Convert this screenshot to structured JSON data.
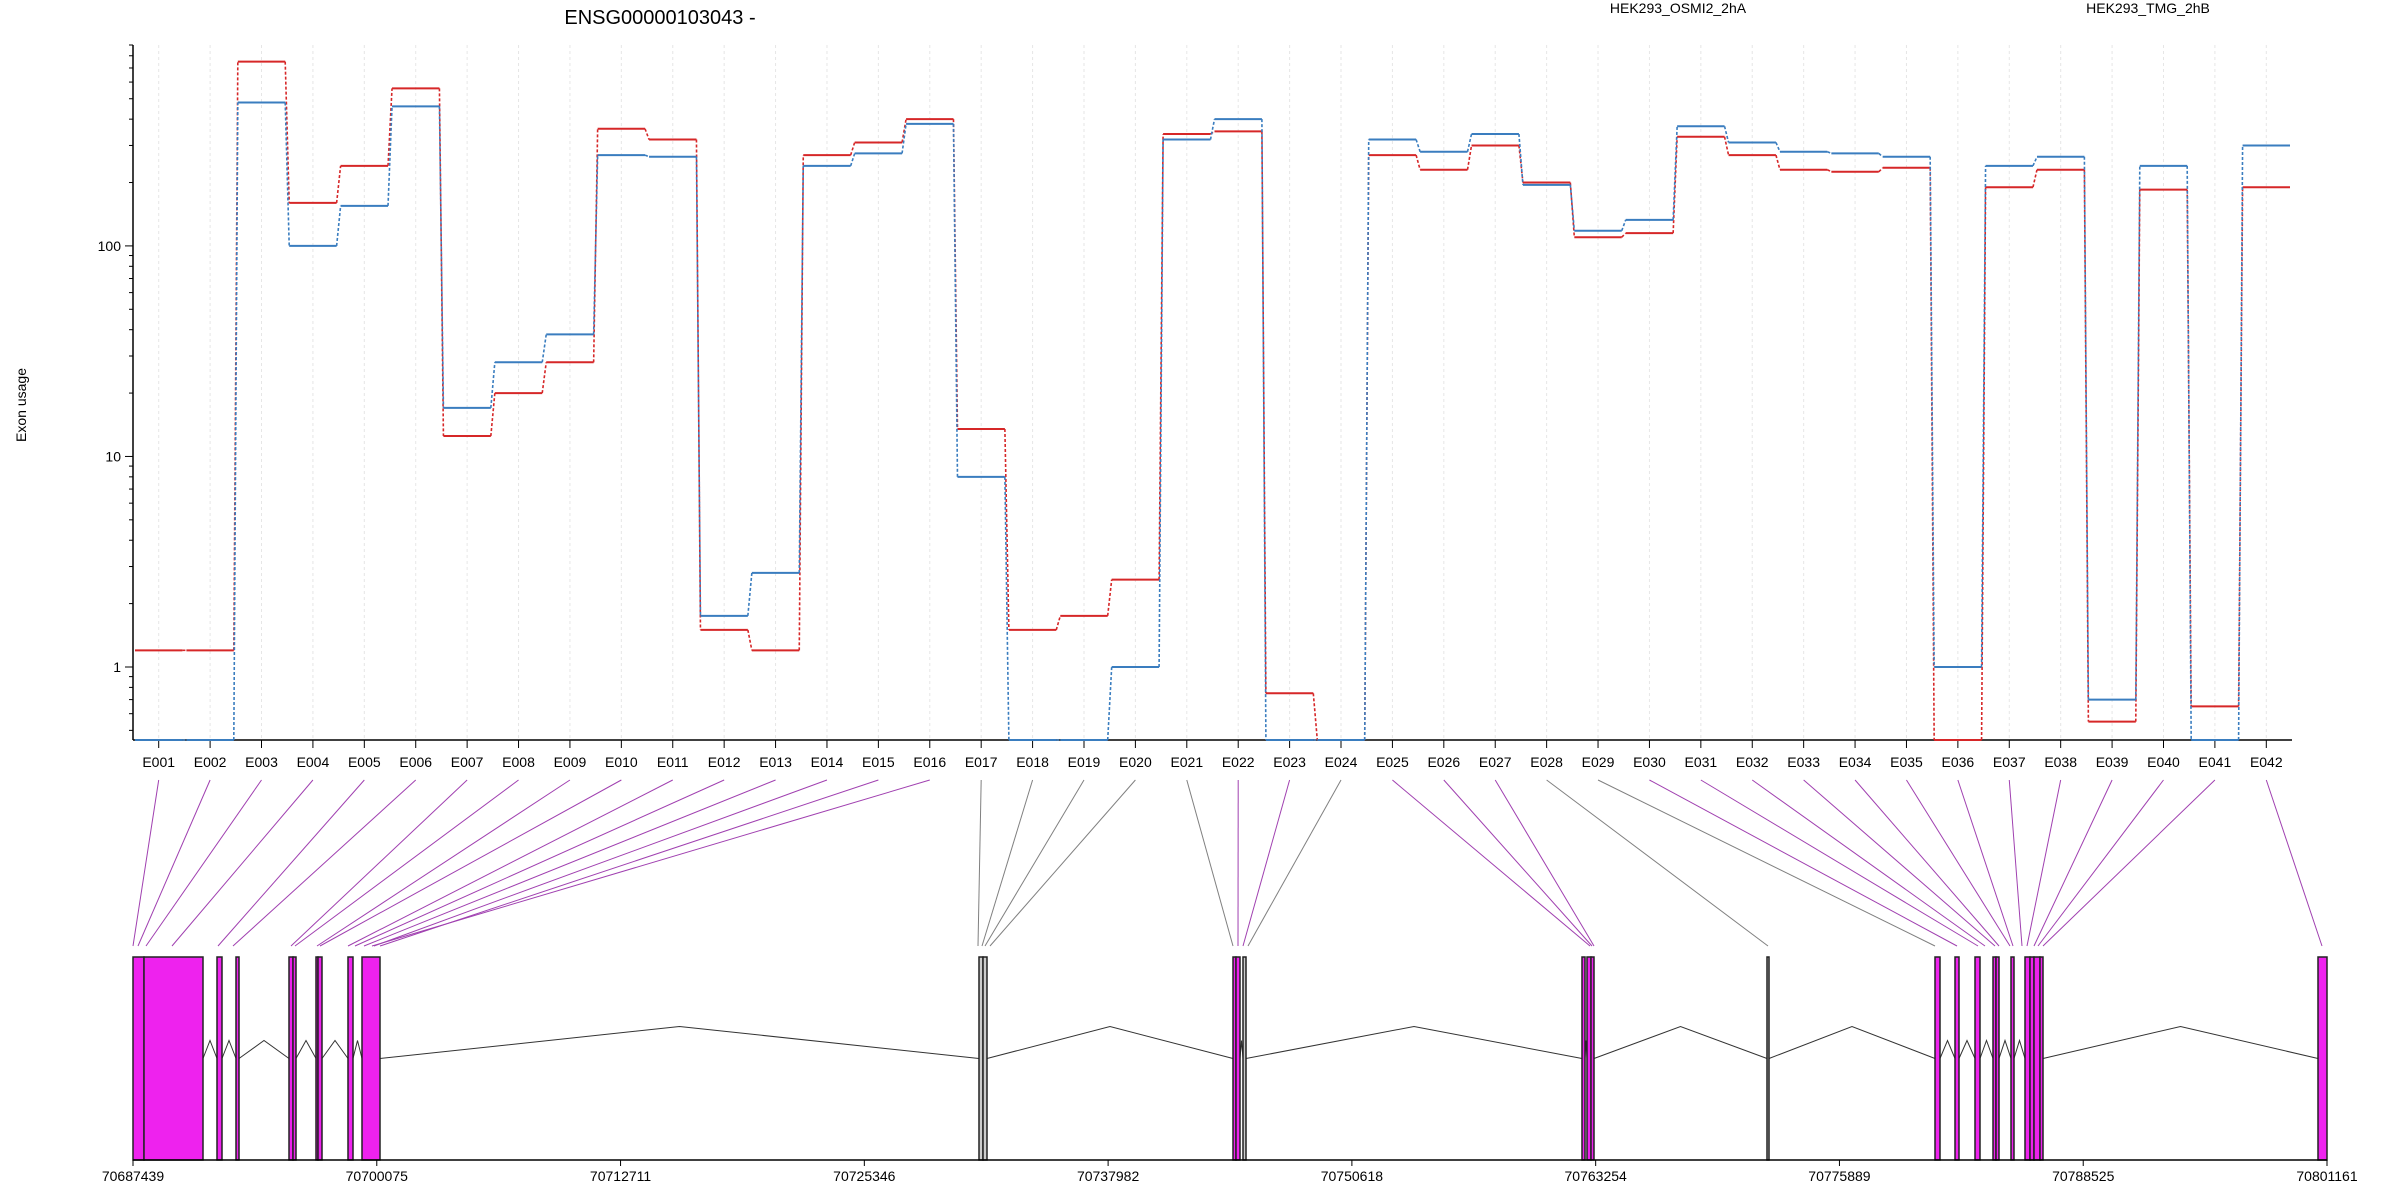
{
  "chart_data": {
    "type": "line",
    "title": "ENSG00000103043 -",
    "ylabel": "Exon usage",
    "y_scale": "log",
    "ylim": [
      0.45,
      900
    ],
    "yticks": [
      {
        "value": 1,
        "label": "1"
      },
      {
        "value": 10,
        "label": "10"
      },
      {
        "value": 100,
        "label": "100"
      }
    ],
    "categories": [
      "E001",
      "E002",
      "E003",
      "E004",
      "E005",
      "E006",
      "E007",
      "E008",
      "E009",
      "E010",
      "E011",
      "E012",
      "E013",
      "E014",
      "E015",
      "E016",
      "E017",
      "E018",
      "E019",
      "E020",
      "E021",
      "E022",
      "E023",
      "E024",
      "E025",
      "E026",
      "E027",
      "E028",
      "E029",
      "E030",
      "E031",
      "E032",
      "E033",
      "E034",
      "E035",
      "E036",
      "E037",
      "E038",
      "E039",
      "E040",
      "E041",
      "E042"
    ],
    "series": [
      {
        "name": "HEK293_OSMI2_2hA",
        "color": "#d62728",
        "values": [
          1.2,
          1.2,
          750,
          160,
          240,
          560,
          12.5,
          20,
          28,
          360,
          320,
          1.5,
          1.2,
          270,
          310,
          400,
          13.5,
          1.5,
          1.75,
          2.6,
          340,
          350,
          0.75,
          0.45,
          270,
          230,
          300,
          200,
          110,
          115,
          330,
          270,
          230,
          225,
          235,
          0.45,
          190,
          230,
          0.55,
          185,
          0.65,
          190
        ]
      },
      {
        "name": "HEK293_TMG_2hB",
        "color": "#3a7dbf",
        "values": [
          0.45,
          0.45,
          480,
          100,
          155,
          460,
          17,
          28,
          38,
          270,
          265,
          1.75,
          2.8,
          240,
          275,
          380,
          8,
          0.45,
          0.45,
          1,
          320,
          400,
          0.45,
          0.45,
          320,
          280,
          340,
          195,
          118,
          133,
          370,
          310,
          280,
          275,
          265,
          1,
          240,
          265,
          0.7,
          240,
          0.45,
          300
        ]
      }
    ],
    "genomic_axis": {
      "ticks": [
        "70687439",
        "70700075",
        "70712711",
        "70725346",
        "70737982",
        "70750618",
        "70763254",
        "70775889",
        "70788525",
        "70801161"
      ]
    },
    "gene_model": {
      "highlight_color": "#ee22ee",
      "normal_color": "#cccccc",
      "highlighted_exons": [
        "E001",
        "E002",
        "E003",
        "E004",
        "E005",
        "E006",
        "E007",
        "E008",
        "E009",
        "E010",
        "E011",
        "E012",
        "E013",
        "E014",
        "E015",
        "E016",
        "E022",
        "E023",
        "E025",
        "E026",
        "E027",
        "E030",
        "E031",
        "E032",
        "E033",
        "E034",
        "E035",
        "E036",
        "E037",
        "E038",
        "E039",
        "E040",
        "E041",
        "E042"
      ]
    }
  }
}
